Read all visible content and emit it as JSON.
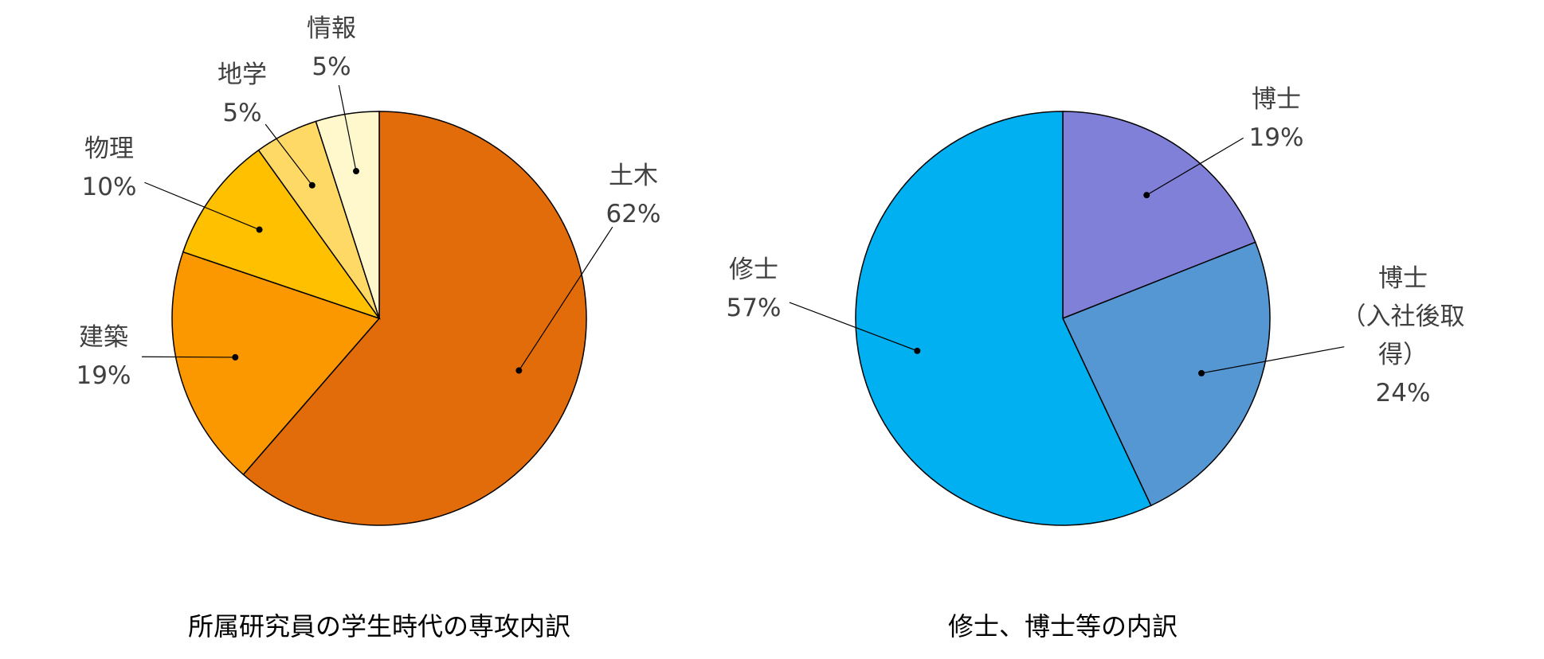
{
  "chart_data": [
    {
      "type": "pie",
      "title": "所属研究員の学生時代の専攻内訳",
      "categories": [
        "土木",
        "建築",
        "物理",
        "地学",
        "情報"
      ],
      "values": [
        62,
        19,
        10,
        5,
        5
      ],
      "value_labels": [
        "62%",
        "19%",
        "10%",
        "5%",
        "5%"
      ],
      "colors": [
        "#e36c0a",
        "#fb9800",
        "#ffc000",
        "#ffd966",
        "#fff8cc"
      ]
    },
    {
      "type": "pie",
      "title": "修士、博士等の内訳",
      "categories": [
        "博士",
        "博士\n（入社後取得）",
        "修士"
      ],
      "values": [
        19,
        24,
        57
      ],
      "value_labels": [
        "19%",
        "24%",
        "57%"
      ],
      "colors": [
        "#8080d8",
        "#5597d3",
        "#00b0f0"
      ]
    }
  ]
}
